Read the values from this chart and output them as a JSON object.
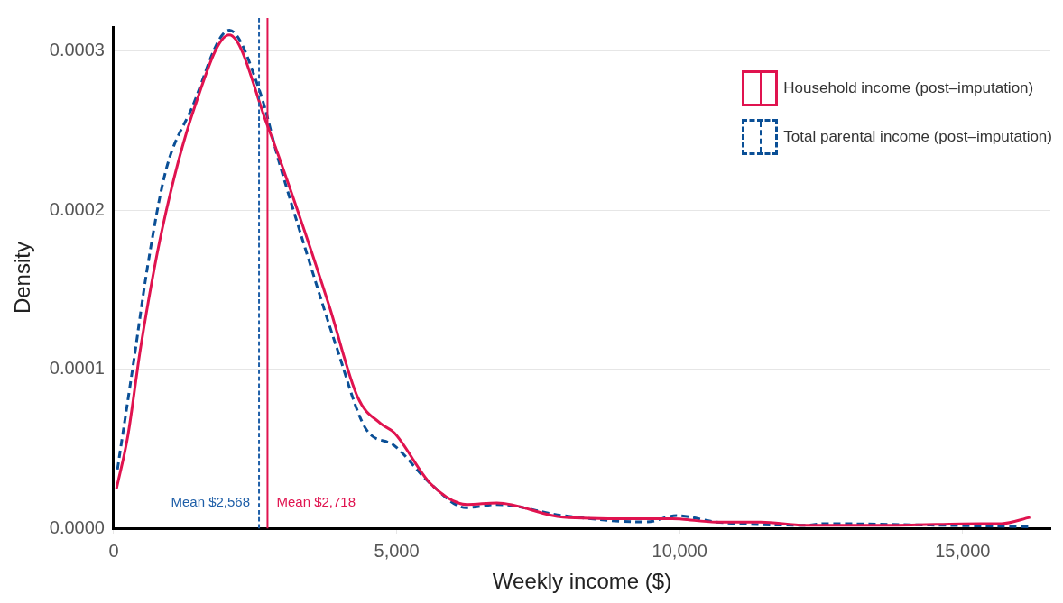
{
  "chart_data": {
    "type": "line",
    "xlabel": "Weekly income ($)",
    "ylabel": "Density",
    "series": [
      {
        "name": "Household income (post–imputation)",
        "color": "#e0134f",
        "line_style": "solid",
        "x": [
          50,
          250,
          478,
          857,
          1433,
          2043,
          2718,
          3295,
          3806,
          4316,
          4712,
          4959,
          5601,
          6244,
          6771,
          7941,
          9094,
          9868,
          10643,
          11433,
          12208,
          13756,
          15305,
          15684,
          16194
        ],
        "values": [
          2.5e-05,
          5.8e-05,
          0.000114,
          0.000188,
          0.000265,
          0.00031,
          0.000253,
          0.000195,
          0.00014,
          8.2e-05,
          6.6e-05,
          6e-05,
          2.8e-05,
          1.5e-05,
          1.6e-05,
          7e-06,
          6e-06,
          6e-06,
          4e-06,
          4e-06,
          2e-06,
          2e-06,
          3e-06,
          3e-06,
          7e-06
        ]
      },
      {
        "name": "Total parental income (post–imputation)",
        "color": "#0a4f96",
        "line_style": "dashed",
        "x": [
          66,
          346,
          610,
          923,
          1367,
          2043,
          2587,
          2916,
          3427,
          3937,
          4448,
          4959,
          5601,
          6227,
          6771,
          7941,
          9407,
          9951,
          10643,
          12208,
          12587,
          14530,
          16161
        ],
        "values": [
          3.7e-05,
          0.000103,
          0.000167,
          0.000225,
          0.000263,
          0.000313,
          0.000274,
          0.000231,
          0.000171,
          0.000114,
          6.3e-05,
          5.2e-05,
          2.8e-05,
          1.3e-05,
          1.5e-05,
          8e-06,
          4e-06,
          8e-06,
          4e-06,
          2e-06,
          3e-06,
          2e-06,
          1e-06
        ]
      }
    ],
    "ref_lines": [
      {
        "axis": "x",
        "value": 2568,
        "label": "Mean $2,568",
        "color": "#1f5fa8",
        "line_style": "dashed"
      },
      {
        "axis": "x",
        "value": 2718,
        "label": "Mean $2,718",
        "color": "#e0134f",
        "line_style": "solid"
      }
    ],
    "xlim": [
      0,
      16550
    ],
    "ylim": [
      0,
      0.000315
    ],
    "xticks": [
      0,
      {
        "value": 5000,
        "label": "5,000"
      },
      {
        "value": 10000,
        "label": "10,000"
      },
      {
        "value": 15000,
        "label": "15,000"
      }
    ],
    "yticks": [
      {
        "value": 0,
        "label": "0.0000"
      },
      {
        "value": 0.0001,
        "label": "0.0001"
      },
      {
        "value": 0.0002,
        "label": "0.0002"
      },
      {
        "value": 0.0003,
        "label": "0.0003"
      }
    ],
    "grid": "y",
    "legend": "top right",
    "marker": "none"
  }
}
